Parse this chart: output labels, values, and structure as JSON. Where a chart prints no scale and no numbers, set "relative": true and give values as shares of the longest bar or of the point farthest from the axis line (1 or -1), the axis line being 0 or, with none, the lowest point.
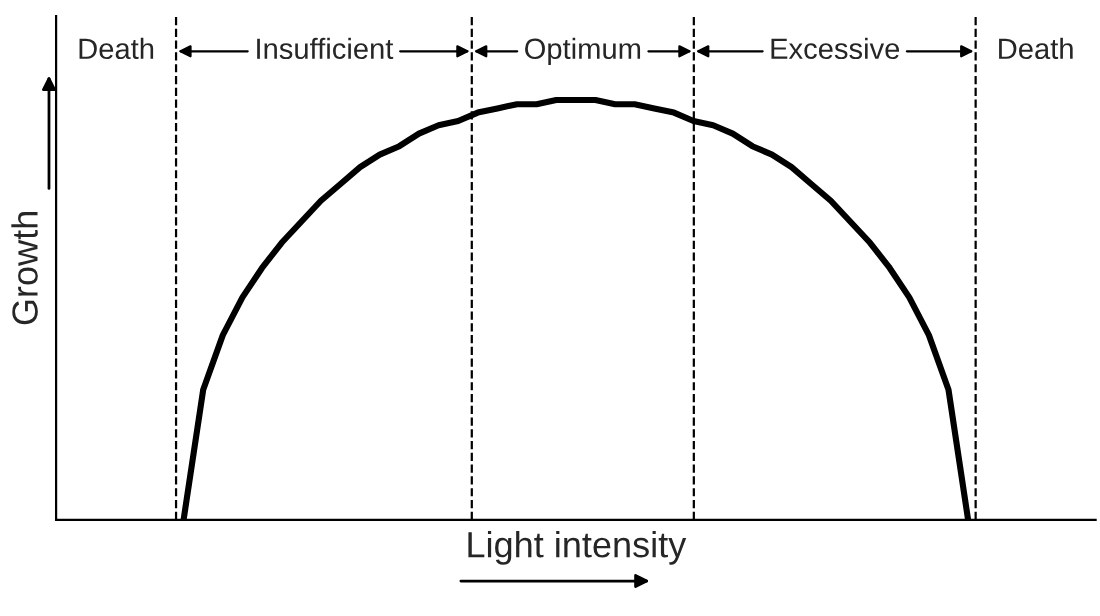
{
  "chart_data": {
    "type": "line",
    "relative": true,
    "xlabel": "Light intensity",
    "ylabel": "Growth",
    "categories": [
      null,
      null,
      null,
      null,
      null,
      null,
      null,
      null,
      null,
      null,
      null,
      null,
      null,
      null,
      null,
      null,
      null,
      null,
      null,
      null,
      null,
      null,
      null,
      null,
      null,
      null,
      null,
      null,
      null,
      null,
      null,
      null,
      null,
      null,
      null,
      null,
      null,
      null,
      null,
      null,
      null,
      null,
      null,
      null,
      null,
      null,
      null,
      null,
      null,
      null,
      null,
      null,
      null
    ],
    "series": [
      {
        "color": "#000000",
        "values": [
          null,
          null,
          null,
          null,
          null,
          null,
          0,
          0.31,
          0.44,
          0.53,
          0.6,
          0.66,
          0.71,
          0.76,
          0.8,
          0.84,
          0.87,
          0.89,
          0.92,
          0.94,
          0.95,
          0.97,
          0.98,
          0.99,
          0.99,
          1,
          1,
          1,
          0.99,
          0.99,
          0.98,
          0.97,
          0.95,
          0.94,
          0.92,
          0.89,
          0.87,
          0.84,
          0.8,
          0.76,
          0.71,
          0.66,
          0.6,
          0.53,
          0.44,
          0.31,
          0,
          null,
          null,
          null,
          null,
          null,
          null
        ]
      }
    ],
    "annotations": [
      "Death",
      "Insufficient",
      "Optimum",
      "Excessive",
      "Death"
    ],
    "legend": false,
    "tick_labels": false,
    "marker": "none",
    "line_style": "solid"
  }
}
